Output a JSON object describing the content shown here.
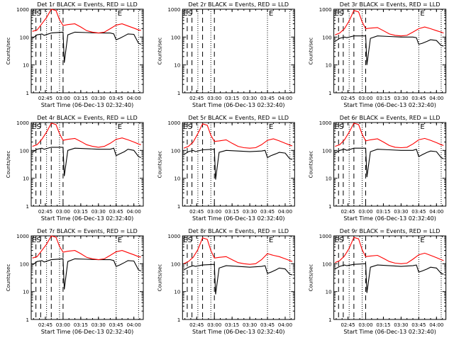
{
  "figure": {
    "x_ticks": [
      "02:45",
      "03:00",
      "03:15",
      "03:30",
      "03:45",
      "04:00"
    ],
    "y_ticks": [
      "1",
      "10",
      "100",
      "1000"
    ]
  },
  "chart_data": [
    {
      "type": "line",
      "title": "Det 1r BLACK = Events, RED = LLD",
      "xlabel": "Start Time (06-Dec-13 02:32:40)",
      "ylabel": "Counts/sec",
      "yscale": "log",
      "ylim": [
        1,
        1000
      ],
      "x_ticks": [
        "02:45",
        "03:00",
        "03:15",
        "03:30",
        "03:45",
        "04:00"
      ],
      "annotations": [
        "ES",
        "E"
      ],
      "series": [
        {
          "name": "BLACK = Events",
          "color": "#000000",
          "x": [
            "02:34",
            "02:38",
            "02:42",
            "02:44",
            "02:50",
            "03:00",
            "03:01",
            "03:04",
            "03:10",
            "03:20",
            "03:30",
            "03:40",
            "03:43",
            "03:45",
            "03:48",
            "03:52",
            "03:55",
            "04:00",
            "04:04",
            "04:06"
          ],
          "y": [
            90,
            120,
            130,
            115,
            140,
            150,
            12,
            120,
            150,
            145,
            140,
            140,
            130,
            80,
            90,
            110,
            130,
            125,
            60,
            55
          ]
        },
        {
          "name": "RED = LLD",
          "color": "#ff0000",
          "x": [
            "02:34",
            "02:38",
            "02:42",
            "02:46",
            "02:50",
            "02:54",
            "02:57",
            "03:00",
            "03:04",
            "03:10",
            "03:15",
            "03:20",
            "03:25",
            "03:30",
            "03:35",
            "03:40",
            "03:45",
            "03:50",
            "03:55",
            "04:00",
            "04:04",
            "04:06"
          ],
          "y": [
            160,
            180,
            300,
            500,
            1000,
            900,
            420,
            260,
            280,
            300,
            230,
            170,
            150,
            140,
            150,
            200,
            270,
            300,
            250,
            210,
            180,
            175
          ]
        }
      ]
    },
    {
      "type": "line",
      "title": "Det 2r BLACK = Events, RED = LLD",
      "xlabel": "Start Time (06-Dec-13 02:32:40)",
      "ylabel": "Counts/sec",
      "yscale": "log",
      "ylim": [
        1,
        1000
      ],
      "x_ticks": [
        "02:45",
        "03:00",
        "03:15",
        "03:30",
        "03:45",
        "04:00"
      ],
      "annotations": [
        "ES",
        "E"
      ],
      "series": []
    },
    {
      "type": "line",
      "title": "Det 3r BLACK = Events, RED = LLD",
      "xlabel": "Start Time (06-Dec-13 02:32:40)",
      "ylabel": "Counts/sec",
      "yscale": "log",
      "ylim": [
        1,
        1000
      ],
      "x_ticks": [
        "02:45",
        "03:00",
        "03:15",
        "03:30",
        "03:45",
        "04:00"
      ],
      "annotations": [
        "ES",
        "E"
      ],
      "series": [
        {
          "name": "BLACK = Events",
          "color": "#000000",
          "x": [
            "02:34",
            "02:38",
            "02:42",
            "02:44",
            "02:50",
            "03:00",
            "03:01",
            "03:04",
            "03:10",
            "03:20",
            "03:30",
            "03:40",
            "03:43",
            "03:45",
            "03:48",
            "03:52",
            "03:55",
            "04:00",
            "04:04",
            "04:06"
          ],
          "y": [
            70,
            90,
            100,
            95,
            110,
            110,
            10,
            90,
            110,
            105,
            100,
            100,
            95,
            55,
            60,
            70,
            80,
            75,
            50,
            48
          ]
        },
        {
          "name": "RED = LLD",
          "color": "#ff0000",
          "x": [
            "02:34",
            "02:38",
            "02:42",
            "02:46",
            "02:50",
            "02:54",
            "02:57",
            "03:00",
            "03:04",
            "03:10",
            "03:15",
            "03:20",
            "03:25",
            "03:30",
            "03:35",
            "03:40",
            "03:45",
            "03:50",
            "03:55",
            "04:00",
            "04:04",
            "04:06"
          ],
          "y": [
            120,
            140,
            200,
            380,
            900,
            800,
            350,
            200,
            210,
            220,
            170,
            130,
            115,
            110,
            115,
            150,
            200,
            230,
            200,
            170,
            150,
            140
          ]
        }
      ]
    },
    {
      "type": "line",
      "title": "Det 4r BLACK = Events, RED = LLD",
      "xlabel": "Start Time (06-Dec-13 02:32:40)",
      "ylabel": "Counts/sec",
      "yscale": "log",
      "ylim": [
        1,
        1000
      ],
      "x_ticks": [
        "02:45",
        "03:00",
        "03:15",
        "03:30",
        "03:45",
        "04:00"
      ],
      "annotations": [
        "ES",
        "E"
      ],
      "series": [
        {
          "name": "BLACK = Events",
          "color": "#000000",
          "x": [
            "02:34",
            "02:38",
            "02:42",
            "02:44",
            "02:50",
            "03:00",
            "03:01",
            "03:04",
            "03:10",
            "03:20",
            "03:30",
            "03:40",
            "03:43",
            "03:45",
            "03:48",
            "03:52",
            "03:55",
            "04:00",
            "04:04",
            "04:06"
          ],
          "y": [
            85,
            110,
            120,
            110,
            130,
            130,
            12,
            100,
            120,
            115,
            110,
            110,
            120,
            65,
            75,
            90,
            110,
            100,
            60,
            55
          ]
        },
        {
          "name": "RED = LLD",
          "color": "#ff0000",
          "x": [
            "02:34",
            "02:38",
            "02:42",
            "02:46",
            "02:50",
            "02:54",
            "02:57",
            "03:00",
            "03:04",
            "03:10",
            "03:15",
            "03:20",
            "03:25",
            "03:30",
            "03:35",
            "03:40",
            "03:45",
            "03:50",
            "03:55",
            "04:00",
            "04:04",
            "04:06"
          ],
          "y": [
            140,
            160,
            250,
            450,
            950,
            850,
            400,
            230,
            250,
            270,
            210,
            160,
            140,
            130,
            140,
            180,
            250,
            280,
            240,
            200,
            170,
            160
          ]
        }
      ]
    },
    {
      "type": "line",
      "title": "Det 5r BLACK = Events, RED = LLD",
      "xlabel": "Start Time (06-Dec-13 02:32:40)",
      "ylabel": "Counts/sec",
      "yscale": "log",
      "ylim": [
        1,
        1000
      ],
      "x_ticks": [
        "02:45",
        "03:00",
        "03:15",
        "03:30",
        "03:45",
        "04:00"
      ],
      "annotations": [
        "ES",
        "E"
      ],
      "series": [
        {
          "name": "BLACK = Events",
          "color": "#000000",
          "x": [
            "02:34",
            "02:38",
            "02:42",
            "02:44",
            "02:50",
            "03:00",
            "03:01",
            "03:04",
            "03:10",
            "03:20",
            "03:30",
            "03:40",
            "03:43",
            "03:45",
            "03:48",
            "03:52",
            "03:55",
            "04:00",
            "04:04",
            "04:06"
          ],
          "y": [
            70,
            90,
            100,
            90,
            105,
            110,
            9,
            85,
            100,
            95,
            90,
            95,
            100,
            55,
            65,
            75,
            85,
            80,
            50,
            48
          ]
        },
        {
          "name": "RED = LLD",
          "color": "#ff0000",
          "x": [
            "02:34",
            "02:38",
            "02:42",
            "02:46",
            "02:50",
            "02:54",
            "02:57",
            "03:00",
            "03:04",
            "03:10",
            "03:15",
            "03:20",
            "03:25",
            "03:30",
            "03:35",
            "03:40",
            "03:45",
            "03:50",
            "03:55",
            "04:00",
            "04:04",
            "04:06"
          ],
          "y": [
            120,
            140,
            200,
            400,
            900,
            800,
            350,
            210,
            220,
            240,
            180,
            140,
            125,
            120,
            125,
            160,
            230,
            260,
            220,
            180,
            155,
            145
          ]
        }
      ]
    },
    {
      "type": "line",
      "title": "Det 6r BLACK = Events, RED = LLD",
      "xlabel": "Start Time (06-Dec-13 02:32:40)",
      "ylabel": "Counts/sec",
      "yscale": "log",
      "ylim": [
        1,
        1000
      ],
      "x_ticks": [
        "02:45",
        "03:00",
        "03:15",
        "03:30",
        "03:45",
        "04:00"
      ],
      "annotations": [
        "ES",
        "E"
      ],
      "series": [
        {
          "name": "BLACK = Events",
          "color": "#000000",
          "x": [
            "02:34",
            "02:38",
            "02:42",
            "02:44",
            "02:50",
            "03:00",
            "03:01",
            "03:04",
            "03:10",
            "03:20",
            "03:30",
            "03:40",
            "03:43",
            "03:45",
            "03:48",
            "03:52",
            "03:55",
            "04:00",
            "04:04",
            "04:06"
          ],
          "y": [
            80,
            100,
            110,
            100,
            120,
            120,
            11,
            90,
            110,
            105,
            100,
            100,
            110,
            60,
            70,
            85,
            95,
            90,
            55,
            50
          ]
        },
        {
          "name": "RED = LLD",
          "color": "#ff0000",
          "x": [
            "02:34",
            "02:38",
            "02:42",
            "02:46",
            "02:50",
            "02:54",
            "02:57",
            "03:00",
            "03:04",
            "03:10",
            "03:15",
            "03:20",
            "03:25",
            "03:30",
            "03:35",
            "03:40",
            "03:45",
            "03:50",
            "03:55",
            "04:00",
            "04:04",
            "04:06"
          ],
          "y": [
            140,
            160,
            240,
            450,
            950,
            850,
            380,
            220,
            240,
            260,
            200,
            150,
            130,
            125,
            130,
            170,
            240,
            270,
            230,
            190,
            160,
            150
          ]
        }
      ]
    },
    {
      "type": "line",
      "title": "Det 7r BLACK = Events, RED = LLD",
      "xlabel": "Start Time (06-Dec-13 02:32:40)",
      "ylabel": "Counts/sec",
      "yscale": "log",
      "ylim": [
        1,
        1000
      ],
      "x_ticks": [
        "02:45",
        "03:00",
        "03:15",
        "03:30",
        "03:45",
        "04:00"
      ],
      "annotations": [
        "ES",
        "E"
      ],
      "series": [
        {
          "name": "BLACK = Events",
          "color": "#000000",
          "x": [
            "02:34",
            "02:38",
            "02:42",
            "02:44",
            "02:50",
            "03:00",
            "03:01",
            "03:04",
            "03:10",
            "03:20",
            "03:30",
            "03:40",
            "03:43",
            "03:45",
            "03:48",
            "03:52",
            "03:55",
            "04:00",
            "04:04",
            "04:06"
          ],
          "y": [
            90,
            120,
            130,
            115,
            140,
            150,
            12,
            120,
            150,
            145,
            140,
            140,
            130,
            80,
            90,
            110,
            130,
            125,
            60,
            55
          ]
        },
        {
          "name": "RED = LLD",
          "color": "#ff0000",
          "x": [
            "02:34",
            "02:38",
            "02:42",
            "02:46",
            "02:50",
            "02:54",
            "02:57",
            "03:00",
            "03:04",
            "03:10",
            "03:15",
            "03:20",
            "03:25",
            "03:30",
            "03:35",
            "03:40",
            "03:45",
            "03:50",
            "03:55",
            "04:00",
            "04:04",
            "04:06"
          ],
          "y": [
            160,
            180,
            300,
            500,
            1000,
            900,
            420,
            260,
            280,
            300,
            230,
            170,
            150,
            140,
            150,
            200,
            270,
            300,
            250,
            210,
            180,
            175
          ]
        }
      ]
    },
    {
      "type": "line",
      "title": "Det 8r BLACK = Events, RED = LLD",
      "xlabel": "Start Time (06-Dec-13 02:32:40)",
      "ylabel": "Counts/sec",
      "yscale": "log",
      "ylim": [
        1,
        1000
      ],
      "x_ticks": [
        "02:45",
        "03:00",
        "03:15",
        "03:30",
        "03:45",
        "04:00"
      ],
      "annotations": [
        "ES",
        "E"
      ],
      "series": [
        {
          "name": "BLACK = Events",
          "color": "#000000",
          "x": [
            "02:34",
            "02:38",
            "02:42",
            "02:44",
            "02:50",
            "03:00",
            "03:01",
            "03:04",
            "03:10",
            "03:20",
            "03:30",
            "03:40",
            "03:43",
            "03:45",
            "03:48",
            "03:52",
            "03:55",
            "04:00",
            "04:04",
            "04:06"
          ],
          "y": [
            60,
            75,
            85,
            80,
            90,
            95,
            8,
            70,
            85,
            80,
            75,
            80,
            85,
            45,
            50,
            60,
            70,
            65,
            42,
            40
          ]
        },
        {
          "name": "RED = LLD",
          "color": "#ff0000",
          "x": [
            "02:34",
            "02:38",
            "02:42",
            "02:46",
            "02:50",
            "02:54",
            "02:57",
            "03:00",
            "03:04",
            "03:10",
            "03:15",
            "03:20",
            "03:25",
            "03:30",
            "03:35",
            "03:40",
            "03:45",
            "03:50",
            "03:55",
            "04:00",
            "04:04",
            "04:06"
          ],
          "y": [
            100,
            120,
            170,
            320,
            850,
            750,
            300,
            160,
            170,
            180,
            140,
            110,
            100,
            95,
            100,
            140,
            230,
            200,
            180,
            150,
            130,
            120
          ]
        }
      ]
    },
    {
      "type": "line",
      "title": "Det 9r BLACK = Events, RED = LLD",
      "xlabel": "Start Time (06-Dec-13 02:32:40)",
      "ylabel": "Counts/sec",
      "yscale": "log",
      "ylim": [
        1,
        1000
      ],
      "x_ticks": [
        "02:45",
        "03:00",
        "03:15",
        "03:30",
        "03:45",
        "04:00"
      ],
      "annotations": [
        "ES",
        "E"
      ],
      "series": [
        {
          "name": "BLACK = Events",
          "color": "#000000",
          "x": [
            "02:34",
            "02:38",
            "02:42",
            "02:44",
            "02:50",
            "03:00",
            "03:01",
            "03:04",
            "03:10",
            "03:20",
            "03:30",
            "03:40",
            "03:43",
            "03:45",
            "03:48",
            "03:52",
            "03:55",
            "04:00",
            "04:04",
            "04:06"
          ],
          "y": [
            65,
            80,
            90,
            85,
            95,
            100,
            9,
            75,
            90,
            85,
            80,
            85,
            90,
            50,
            55,
            65,
            75,
            70,
            45,
            42
          ]
        },
        {
          "name": "RED = LLD",
          "color": "#ff0000",
          "x": [
            "02:34",
            "02:38",
            "02:42",
            "02:46",
            "02:50",
            "02:54",
            "02:57",
            "03:00",
            "03:04",
            "03:10",
            "03:15",
            "03:20",
            "03:25",
            "03:30",
            "03:35",
            "03:40",
            "03:45",
            "03:50",
            "03:55",
            "04:00",
            "04:04",
            "04:06"
          ],
          "y": [
            110,
            130,
            190,
            360,
            880,
            780,
            320,
            180,
            190,
            200,
            155,
            120,
            105,
            100,
            105,
            145,
            210,
            240,
            200,
            165,
            140,
            130
          ]
        }
      ]
    }
  ]
}
